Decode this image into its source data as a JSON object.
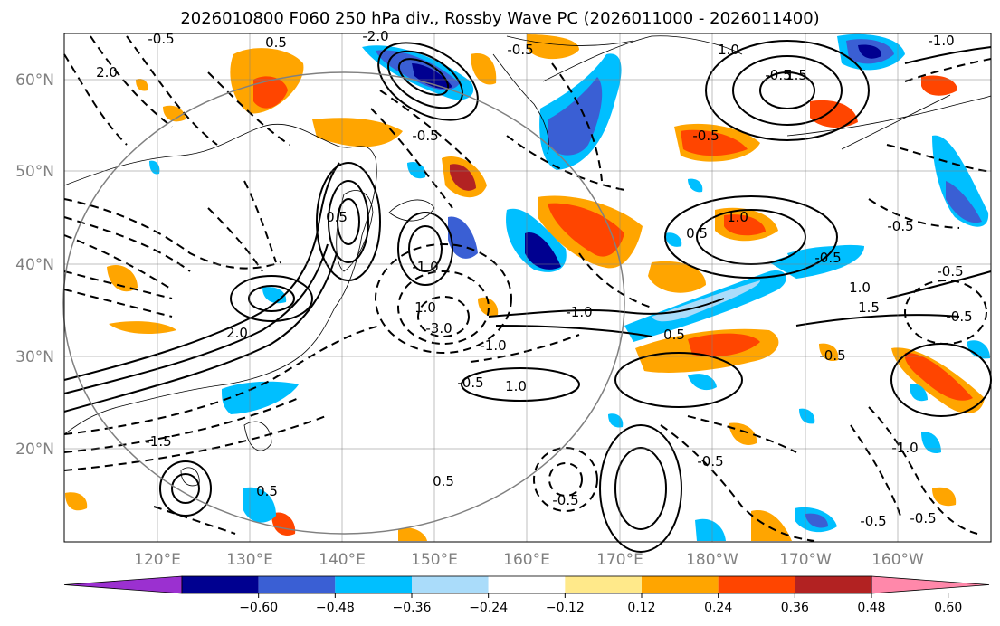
{
  "title": "2026010800 F060 250 hPa div., Rossby Wave PC (2026011000 - 2026011400)",
  "lat_labels": [
    "60°N",
    "50°N",
    "40°N",
    "30°N",
    "20°N"
  ],
  "lon_labels": [
    "120°E",
    "130°E",
    "140°E",
    "150°E",
    "160°E",
    "170°E",
    "180°W",
    "170°W",
    "160°W"
  ],
  "contour_labels": [
    "0.5",
    "2.0",
    "-0.5",
    "-2.0",
    "0.5",
    "-1.0",
    "1.5",
    "-0.5",
    "1.0",
    "-0.5",
    "-1.0",
    "0.5",
    "-0.5",
    "1.0",
    "-0.5",
    "1.0",
    "-0.5",
    "-3.0",
    "-1.0",
    "-0.5",
    "1.0",
    "-1.0",
    "-1.5",
    "0.5",
    "-0.5",
    "0.5",
    "-0.5",
    "-1.0",
    "0.5",
    "-0.5",
    "-0.5",
    "1.0",
    "1.5",
    "-0.5",
    "2.0",
    "-0.5",
    "-0.5",
    "-0.5"
  ],
  "colorbar": {
    "ticks": [
      "−0.60",
      "−0.48",
      "−0.36",
      "−0.24",
      "−0.12",
      "0.12",
      "0.24",
      "0.36",
      "0.48",
      "0.60"
    ],
    "colors": [
      "#9b30d0",
      "#000090",
      "#3a5fd4",
      "#00bfff",
      "#aadcfa",
      "#ffffff",
      "#ffe98a",
      "#ffa500",
      "#ff4500",
      "#b22222",
      "#ff88aa"
    ]
  }
}
